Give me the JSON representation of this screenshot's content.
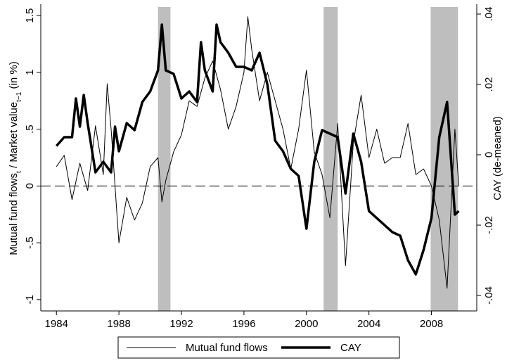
{
  "chart_data": {
    "type": "line",
    "ylabel": [
      "Mutual fund flows",
      "t",
      " / Market value",
      "t−1",
      " (in %)"
    ],
    "y2label": "CAY (de-meaned)",
    "xlim": [
      1983,
      2010.9
    ],
    "xticks": [
      1984,
      1988,
      1992,
      1996,
      2000,
      2004,
      2008
    ],
    "ylim": [
      -1.1,
      1.6
    ],
    "yticks": [
      {
        "value": -1,
        "label": "-1"
      },
      {
        "value": -0.5,
        "label": "-.5"
      },
      0,
      {
        "value": 0.5,
        "label": ".5"
      },
      1,
      1.5
    ],
    "y2lim": [
      -0.0444,
      0.0428
    ],
    "y2ticks": [
      {
        "value": -0.04,
        "label": "-.04"
      },
      {
        "value": -0.02,
        "label": "-.02"
      },
      0,
      {
        "value": 0.02,
        "label": ".02"
      },
      {
        "value": 0.04,
        "label": ".04"
      }
    ],
    "zero_line": 0,
    "shaded_periods": [
      [
        1990.5,
        1991.3
      ],
      [
        2001.1,
        2002.0
      ],
      [
        2007.95,
        2009.7
      ]
    ],
    "legend": "bottom",
    "series": [
      {
        "name": "Mutual fund flows",
        "color": "#000000",
        "width": 1,
        "x": [
          1984.0,
          1984.5,
          1985.0,
          1985.5,
          1986.0,
          1986.5,
          1987.0,
          1987.25,
          1987.5,
          1988.0,
          1988.5,
          1989.0,
          1989.5,
          1990.0,
          1990.5,
          1990.75,
          1991.0,
          1991.5,
          1992.0,
          1992.5,
          1993.0,
          1993.5,
          1994.0,
          1994.5,
          1995.0,
          1995.5,
          1996.0,
          1996.25,
          1996.5,
          1997.0,
          1997.5,
          1998.0,
          1998.5,
          1999.0,
          1999.5,
          2000.0,
          2000.5,
          2001.0,
          2001.5,
          2002.0,
          2002.5,
          2003.0,
          2003.5,
          2004.0,
          2004.5,
          2005.0,
          2005.5,
          2006.0,
          2006.5,
          2007.0,
          2007.5,
          2008.0,
          2008.5,
          2009.0,
          2009.5,
          2009.75
        ],
        "values": [
          0.17,
          0.27,
          -0.12,
          0.2,
          -0.04,
          0.53,
          0.1,
          0.9,
          0.5,
          -0.5,
          -0.1,
          -0.3,
          -0.15,
          0.17,
          0.25,
          -0.14,
          0.05,
          0.3,
          0.45,
          0.75,
          0.7,
          0.95,
          1.1,
          0.85,
          0.5,
          0.7,
          1.0,
          1.49,
          1.2,
          0.75,
          1.0,
          0.75,
          0.5,
          0.15,
          0.5,
          1.02,
          0.3,
          0.1,
          -0.28,
          0.55,
          -0.7,
          0.38,
          0.8,
          0.25,
          0.5,
          0.2,
          0.25,
          0.25,
          0.55,
          0.1,
          0.15,
          0.0,
          -0.3,
          -0.9,
          0.5,
          0.0
        ]
      },
      {
        "name": "CAY",
        "color": "#000000",
        "width": 3.5,
        "axis": "y2",
        "x": [
          1984.0,
          1984.5,
          1985.0,
          1985.25,
          1985.5,
          1985.75,
          1986.0,
          1986.5,
          1987.0,
          1987.5,
          1987.75,
          1988.0,
          1988.5,
          1989.0,
          1989.5,
          1990.0,
          1990.5,
          1990.75,
          1991.0,
          1991.5,
          1992.0,
          1992.5,
          1993.0,
          1993.25,
          1993.5,
          1994.0,
          1994.25,
          1994.5,
          1995.0,
          1995.5,
          1996.0,
          1996.5,
          1997.0,
          1997.5,
          1998.0,
          1998.5,
          1999.0,
          1999.5,
          2000.0,
          2000.5,
          2001.0,
          2001.5,
          2002.0,
          2002.5,
          2003.0,
          2003.5,
          2004.0,
          2004.5,
          2005.0,
          2005.5,
          2006.0,
          2006.5,
          2007.0,
          2007.5,
          2008.0,
          2008.5,
          2009.0,
          2009.5,
          2009.75
        ],
        "values": [
          0.0025,
          0.005,
          0.005,
          0.016,
          0.008,
          0.017,
          0.009,
          -0.005,
          -0.002,
          -0.005,
          0.008,
          0.001,
          0.009,
          0.007,
          0.015,
          0.018,
          0.024,
          0.037,
          0.024,
          0.023,
          0.016,
          0.018,
          0.015,
          0.032,
          0.024,
          0.018,
          0.037,
          0.032,
          0.029,
          0.025,
          0.025,
          0.024,
          0.029,
          0.02,
          0.004,
          0.001,
          -0.004,
          -0.006,
          -0.021,
          -0.002,
          0.007,
          0.006,
          0.005,
          -0.011,
          0.006,
          -0.002,
          -0.016,
          -0.018,
          -0.02,
          -0.022,
          -0.023,
          -0.03,
          -0.034,
          -0.027,
          -0.018,
          0.005,
          0.015,
          -0.017,
          -0.016
        ]
      }
    ]
  }
}
